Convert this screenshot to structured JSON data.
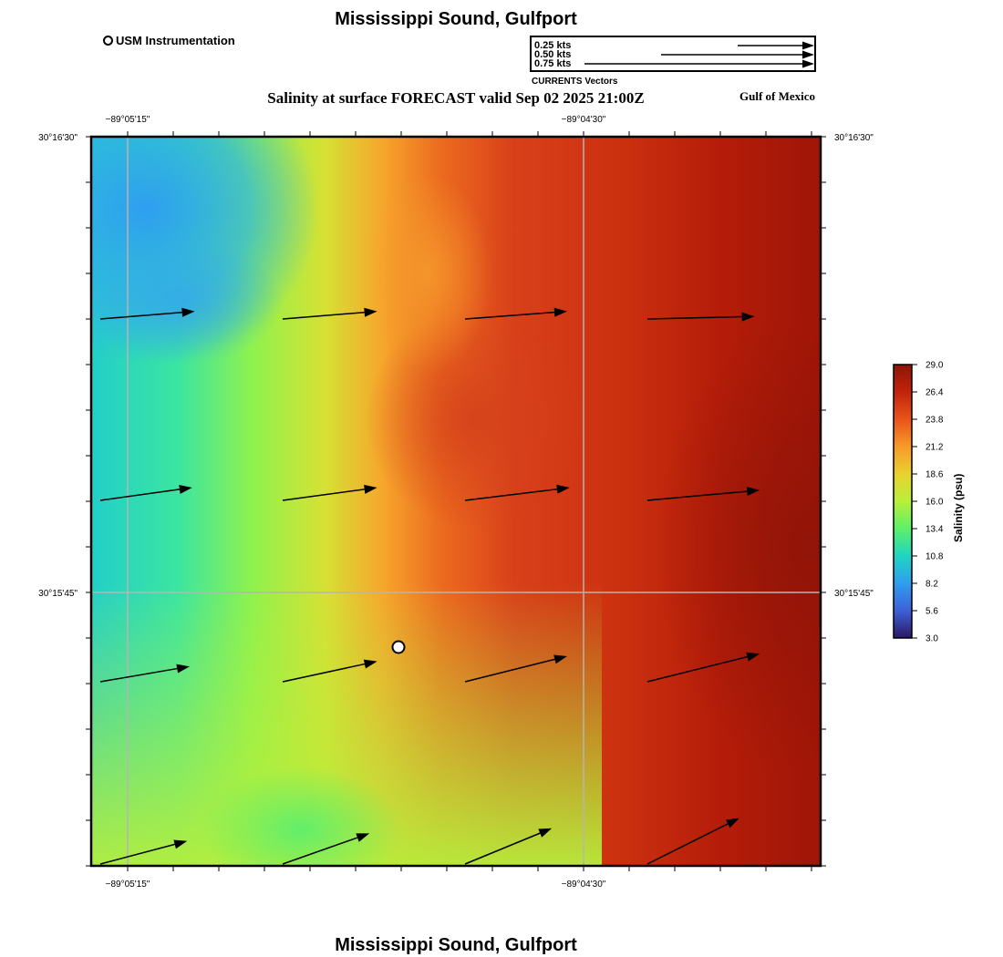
{
  "header": {
    "title": "Mississippi Sound, Gulfport",
    "subtitle": "Salinity at surface FORECAST valid Sep 02 2025 21:00Z",
    "region_label": "Gulf of Mexico",
    "footer_title": "Mississippi Sound, Gulfport"
  },
  "station_legend": {
    "label": "USM Instrumentation",
    "icon": "circle-marker-icon"
  },
  "vector_legend": {
    "caption": "CURRENTS Vectors",
    "entries": [
      {
        "label": "0.25 kts",
        "speed": 0.25
      },
      {
        "label": "0.50 kts",
        "speed": 0.5
      },
      {
        "label": "0.75 kts",
        "speed": 0.75
      }
    ]
  },
  "map": {
    "lon_labels": [
      "−89°05'15\"",
      "−89°04'30\""
    ],
    "lat_labels": [
      "30°16'30\"",
      "30°15'45\""
    ]
  },
  "colorbar": {
    "title": "Salinity (psu)",
    "min": 3.0,
    "max": 29.0,
    "ticks": [
      "29.0",
      "26.4",
      "23.8",
      "21.2",
      "18.6",
      "16.0",
      "13.4",
      "10.8",
      "8.2",
      "5.6",
      "3.0"
    ],
    "colors": [
      "#2a1763",
      "#3e60d8",
      "#2f9ef0",
      "#1fd5c2",
      "#5cf06a",
      "#b9ef3a",
      "#e9d12f",
      "#f79a2b",
      "#e9541a",
      "#c2230a",
      "#8e1408"
    ]
  },
  "currents": {
    "rows_top_to_bottom": [
      [
        {
          "u": 0.37,
          "v": 0.03
        },
        {
          "u": 0.37,
          "v": 0.03
        },
        {
          "u": 0.4,
          "v": 0.03
        },
        {
          "u": 0.42,
          "v": 0.01
        }
      ],
      [
        {
          "u": 0.36,
          "v": 0.05
        },
        {
          "u": 0.37,
          "v": 0.05
        },
        {
          "u": 0.41,
          "v": 0.05
        },
        {
          "u": 0.44,
          "v": 0.04
        }
      ],
      [
        {
          "u": 0.35,
          "v": 0.06
        },
        {
          "u": 0.37,
          "v": 0.08
        },
        {
          "u": 0.4,
          "v": 0.1
        },
        {
          "u": 0.44,
          "v": 0.11
        }
      ],
      [
        {
          "u": 0.34,
          "v": 0.09
        },
        {
          "u": 0.34,
          "v": 0.12
        },
        {
          "u": 0.34,
          "v": 0.14
        },
        {
          "u": 0.36,
          "v": 0.18
        }
      ]
    ]
  }
}
